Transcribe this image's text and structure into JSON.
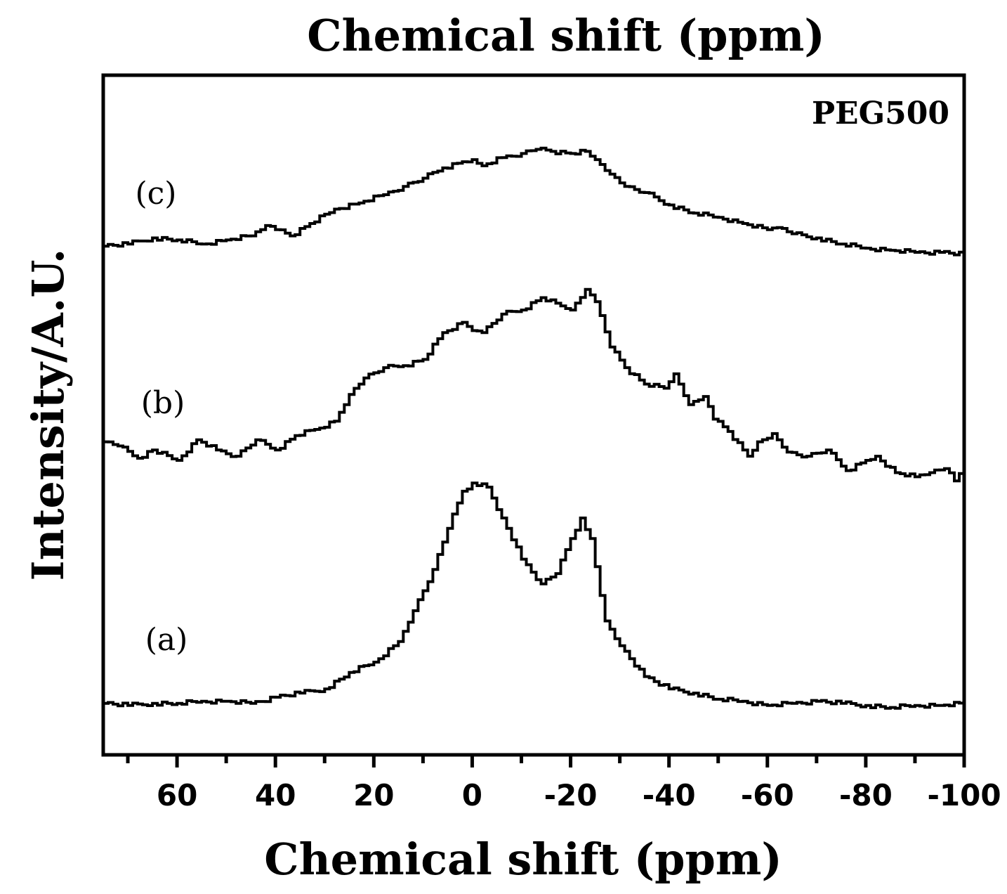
{
  "chart_data": {
    "type": "line",
    "title": "Chemical shift (ppm)",
    "xlabel": "Chemical shift (ppm)",
    "ylabel": "Intensity/A.U.",
    "annotation": "PEG500",
    "xlim": [
      75,
      -100
    ],
    "x_reversed": true,
    "x_ticks": [
      60,
      40,
      20,
      0,
      -20,
      -40,
      -60,
      -80,
      -100
    ],
    "x_tick_labels": [
      "60",
      "40",
      "20",
      "0",
      "-20",
      "-40",
      "-60",
      "-80",
      "-100"
    ],
    "x_minor_ticks": [
      70,
      50,
      30,
      10,
      -10,
      -30,
      -50,
      -70,
      -90
    ],
    "y_ticks_shown": false,
    "grid": false,
    "legend": "none",
    "series": [
      {
        "label": "(a)",
        "color": "#000000",
        "x": [
          75,
          70,
          65,
          60,
          55,
          50,
          45,
          40,
          35,
          30,
          25,
          20,
          15,
          12,
          8,
          5,
          2,
          0,
          -3,
          -6,
          -10,
          -14,
          -17,
          -20,
          -22,
          -24,
          -27,
          -30,
          -35,
          -40,
          -45,
          -50,
          -55,
          -60,
          -65,
          -70,
          -75,
          -80,
          -85,
          -90,
          -95,
          -100
        ],
        "values": [
          0.5,
          0.4,
          0.5,
          0.5,
          0.6,
          0.6,
          0.5,
          0.8,
          1.0,
          1.2,
          2.0,
          2.5,
          3.5,
          5.0,
          7.0,
          9.0,
          10.8,
          11.2,
          11.0,
          9.5,
          7.5,
          6.3,
          6.8,
          8.5,
          9.5,
          8.5,
          4.5,
          3.3,
          1.8,
          1.2,
          1.0,
          0.7,
          0.6,
          0.4,
          0.5,
          0.6,
          0.5,
          0.4,
          0.3,
          0.4,
          0.4,
          0.5
        ]
      },
      {
        "label": "(b)",
        "color": "#000000",
        "x": [
          75,
          72,
          68,
          65,
          60,
          56,
          52,
          48,
          44,
          40,
          36,
          32,
          28,
          25,
          22,
          18,
          14,
          10,
          6,
          2,
          0,
          -2,
          -6,
          -10,
          -14,
          -18,
          -20,
          -23,
          -25,
          -28,
          -31,
          -35,
          -39,
          -41,
          -44,
          -47,
          -49,
          -52,
          -56,
          -58,
          -61,
          -64,
          -68,
          -72,
          -76,
          -80,
          -82,
          -86,
          -90,
          -93,
          -96,
          -98,
          -100
        ],
        "values": [
          13.2,
          13.0,
          12.4,
          12.8,
          12.3,
          13.3,
          12.8,
          12.5,
          13.3,
          12.8,
          13.5,
          13.8,
          14.2,
          15.5,
          16.3,
          16.8,
          16.9,
          17.2,
          18.5,
          19.0,
          18.6,
          18.5,
          19.4,
          19.6,
          20.2,
          19.8,
          19.6,
          20.6,
          20.0,
          17.8,
          16.8,
          16.0,
          15.8,
          16.5,
          15.0,
          15.4,
          14.3,
          13.7,
          12.5,
          13.2,
          13.6,
          12.7,
          12.5,
          12.8,
          11.8,
          12.3,
          12.5,
          11.7,
          11.5,
          11.7,
          11.9,
          11.3,
          12.2
        ]
      },
      {
        "label": "(c)",
        "color": "#000000",
        "x": [
          75,
          70,
          65,
          60,
          55,
          50,
          45,
          42,
          40,
          37,
          33,
          28,
          23,
          18,
          14,
          10,
          6,
          2,
          0,
          -2,
          -6,
          -10,
          -13,
          -16,
          -20,
          -23,
          -25,
          -28,
          -31,
          -35,
          -40,
          -45,
          -50,
          -55,
          -60,
          -62,
          -65,
          -70,
          -75,
          -80,
          -85,
          -90,
          -95,
          -100
        ],
        "values": [
          22.7,
          22.8,
          23.1,
          23.0,
          22.8,
          23.0,
          23.2,
          23.7,
          23.5,
          23.2,
          23.8,
          24.5,
          24.8,
          25.2,
          25.6,
          26.0,
          26.5,
          26.8,
          26.9,
          26.6,
          27.0,
          27.2,
          27.4,
          27.3,
          27.2,
          27.3,
          26.9,
          26.2,
          25.6,
          25.3,
          24.7,
          24.3,
          24.1,
          23.8,
          23.5,
          23.6,
          23.3,
          23.1,
          22.8,
          22.6,
          22.5,
          22.4,
          22.4,
          22.3
        ]
      }
    ],
    "ylim": [
      -2,
      31
    ]
  }
}
